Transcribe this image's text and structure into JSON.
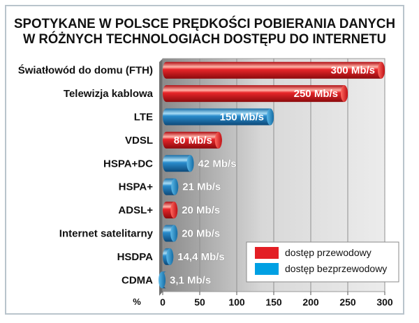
{
  "chart_data": {
    "type": "bar",
    "orientation": "horizontal",
    "title": "SPOTYKANE W POLSCE PRĘDKOŚCI POBIERANIA DANYCH W RÓŻNYCH TECHNOLOGIACH DOSTĘPU DO INTERNETU",
    "title_lines": [
      "SPOTYKANE W POLSCE PRĘDKOŚCI POBIERANIA DANYCH",
      "W RÓŻNYCH TECHNOLOGIACH DOSTĘPU DO INTERNETU"
    ],
    "xlabel": "%",
    "xlim": [
      0,
      300
    ],
    "xticks": [
      0,
      50,
      100,
      150,
      200,
      250,
      300
    ],
    "grid": true,
    "legend_position": "bottom-right",
    "legend": [
      {
        "name": "dostęp przewodowy",
        "color": "#e31e24"
      },
      {
        "name": "dostęp bezprzewodowy",
        "color": "#00a0e3"
      }
    ],
    "categories": [
      "Światłowód do domu (FTH)",
      "Telewizja kablowa",
      "LTE",
      "VDSL",
      "HSPA+DC",
      "HSPA+",
      "ADSL+",
      "Internet satelitarny",
      "HSDPA",
      "CDMA"
    ],
    "values": [
      300,
      250,
      150,
      80,
      42,
      21,
      20,
      20,
      14.4,
      3.1
    ],
    "types": [
      "przewodowy",
      "przewodowy",
      "bezprzewodowy",
      "przewodowy",
      "bezprzewodowy",
      "bezprzewodowy",
      "przewodowy",
      "bezprzewodowy",
      "bezprzewodowy",
      "bezprzewodowy"
    ],
    "data_labels": [
      "300 Mb/s",
      "250 Mb/s",
      "150 Mb/s",
      "80 Mb/s",
      "42 Mb/s",
      "21 Mb/s",
      "20 Mb/s",
      "20 Mb/s",
      "14,4 Mb/s",
      "3,1 Mb/s"
    ]
  }
}
